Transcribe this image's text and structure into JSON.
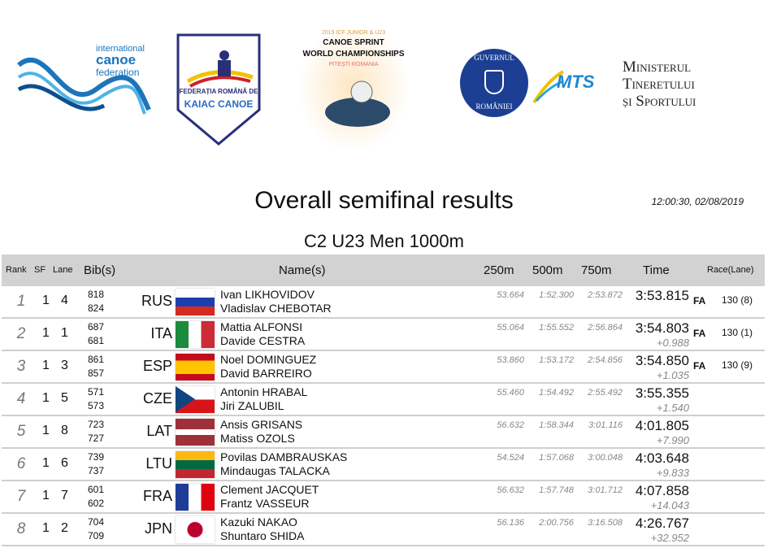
{
  "logos": {
    "icf": {
      "line1": "international",
      "line2": "canoe",
      "line3": "federation"
    },
    "frkc": {
      "line1": "FEDERAȚIA ROMÂNĂ DE",
      "line2": "KAIAC CANOE"
    },
    "event": {
      "line1": "2019 ICF JUNIOR & U23",
      "line2": "CANOE SPRINT",
      "line3": "WORLD CHAMPIONSHIPS",
      "line4": "PITEȘTI ROMANIA"
    },
    "guvern": {
      "top": "GUVERNUL",
      "bottom": "ROMÂNIEI"
    },
    "mts": "MTS",
    "minister": {
      "line1": "Ministerul",
      "line2": "Tineretului",
      "line3": "și Sportului"
    }
  },
  "title": "Overall semifinal results",
  "timestamp": "12:00:30, 02/08/2019",
  "subtitle": "C2 U23 Men  1000m",
  "headers": {
    "rank": "Rank",
    "sf": "SF",
    "lane": "Lane",
    "bibs": "Bib(s)",
    "names": "Name(s)",
    "s250": "250m",
    "s500": "500m",
    "s750": "750m",
    "time": "Time",
    "race": "Race(Lane)"
  },
  "rows": [
    {
      "rank": "1",
      "sf": "1",
      "lane": "4",
      "bib1": "818",
      "bib2": "824",
      "noc": "RUS",
      "flag": "russia-flag",
      "name1": "Ivan LIKHOVIDOV",
      "name2": "Vladislav CHEBOTAR",
      "s250": "53.664",
      "s500": "1:52.300",
      "s750": "2:53.872",
      "time": "3:53.815",
      "diff": "",
      "q": "FA",
      "race": "130 (8)"
    },
    {
      "rank": "2",
      "sf": "1",
      "lane": "1",
      "bib1": "687",
      "bib2": "681",
      "noc": "ITA",
      "flag": "italy-flag",
      "name1": "Mattia ALFONSI",
      "name2": "Davide CESTRA",
      "s250": "55.064",
      "s500": "1:55.552",
      "s750": "2:56.864",
      "time": "3:54.803",
      "diff": "+0.988",
      "q": "FA",
      "race": "130 (1)"
    },
    {
      "rank": "3",
      "sf": "1",
      "lane": "3",
      "bib1": "861",
      "bib2": "857",
      "noc": "ESP",
      "flag": "spain-flag",
      "name1": "Noel DOMINGUEZ",
      "name2": "David BARREIRO",
      "s250": "53.860",
      "s500": "1:53.172",
      "s750": "2:54.856",
      "time": "3:54.850",
      "diff": "+1.035",
      "q": "FA",
      "race": "130 (9)"
    },
    {
      "rank": "4",
      "sf": "1",
      "lane": "5",
      "bib1": "571",
      "bib2": "573",
      "noc": "CZE",
      "flag": "czech-flag",
      "name1": "Antonin HRABAL",
      "name2": "Jiri ZALUBIL",
      "s250": "55.460",
      "s500": "1:54.492",
      "s750": "2:55.492",
      "time": "3:55.355",
      "diff": "+1.540",
      "q": "",
      "race": ""
    },
    {
      "rank": "5",
      "sf": "1",
      "lane": "8",
      "bib1": "723",
      "bib2": "727",
      "noc": "LAT",
      "flag": "latvia-flag",
      "name1": "Ansis GRISANS",
      "name2": "Matiss OZOLS",
      "s250": "56.632",
      "s500": "1:58.344",
      "s750": "3:01.116",
      "time": "4:01.805",
      "diff": "+7.990",
      "q": "",
      "race": ""
    },
    {
      "rank": "6",
      "sf": "1",
      "lane": "6",
      "bib1": "739",
      "bib2": "737",
      "noc": "LTU",
      "flag": "lithuania-flag",
      "name1": "Povilas DAMBRAUSKAS",
      "name2": "Mindaugas TALACKA",
      "s250": "54.524",
      "s500": "1:57.068",
      "s750": "3:00.048",
      "time": "4:03.648",
      "diff": "+9.833",
      "q": "",
      "race": ""
    },
    {
      "rank": "7",
      "sf": "1",
      "lane": "7",
      "bib1": "601",
      "bib2": "602",
      "noc": "FRA",
      "flag": "france-flag",
      "name1": "Clement JACQUET",
      "name2": "Frantz VASSEUR",
      "s250": "56.632",
      "s500": "1:57.748",
      "s750": "3:01.712",
      "time": "4:07.858",
      "diff": "+14.043",
      "q": "",
      "race": ""
    },
    {
      "rank": "8",
      "sf": "1",
      "lane": "2",
      "bib1": "704",
      "bib2": "709",
      "noc": "JPN",
      "flag": "japan-flag",
      "name1": "Kazuki NAKAO",
      "name2": "Shuntaro SHIDA",
      "s250": "56.136",
      "s500": "2:00.756",
      "s750": "3:16.508",
      "time": "4:26.767",
      "diff": "+32.952",
      "q": "",
      "race": ""
    }
  ]
}
